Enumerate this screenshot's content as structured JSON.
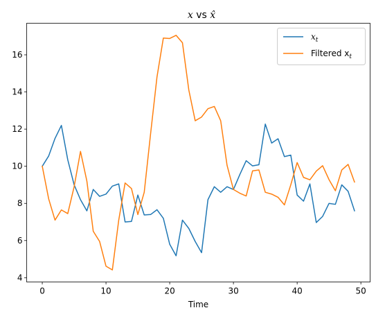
{
  "chart_data": {
    "type": "line",
    "title": "x vs x̂",
    "title_parts": {
      "a": "x",
      "vs": " vs ",
      "b": "x̂"
    },
    "xlabel": "Time",
    "ylabel": "",
    "xlim": [
      -2.45,
      51.45
    ],
    "ylim": [
      3.77,
      17.7
    ],
    "xticks": [
      0,
      10,
      20,
      30,
      40,
      50
    ],
    "yticks": [
      4,
      6,
      8,
      10,
      12,
      14,
      16
    ],
    "grid": false,
    "legend_position": "top-right",
    "series": [
      {
        "name": "x_t",
        "legend_label": {
          "main": "x",
          "sub": "t"
        },
        "color": "#1f77b4",
        "x": [
          0,
          1,
          2,
          3,
          4,
          5,
          6,
          7,
          8,
          9,
          10,
          11,
          12,
          13,
          14,
          15,
          16,
          17,
          18,
          19,
          20,
          21,
          22,
          23,
          24,
          25,
          26,
          27,
          28,
          29,
          30,
          31,
          32,
          33,
          34,
          35,
          36,
          37,
          38,
          39,
          40,
          41,
          42,
          43,
          44,
          45,
          46,
          47,
          48,
          49
        ],
        "values": [
          10.0,
          10.55,
          11.5,
          12.2,
          10.35,
          9.0,
          8.2,
          7.6,
          8.75,
          8.38,
          8.5,
          8.93,
          9.05,
          7.0,
          7.03,
          8.45,
          7.38,
          7.4,
          7.66,
          7.2,
          5.8,
          5.18,
          7.1,
          6.65,
          5.95,
          5.35,
          8.2,
          8.9,
          8.6,
          8.9,
          8.75,
          9.55,
          10.3,
          10.02,
          10.08,
          12.27,
          11.25,
          11.48,
          10.52,
          10.6,
          8.45,
          8.12,
          9.05,
          6.97,
          7.3,
          8.0,
          7.95,
          9.0,
          8.65,
          7.6
        ]
      },
      {
        "name": "Filtered x_t",
        "legend_label": {
          "main": "Filtered x",
          "sub": "t"
        },
        "color": "#ff7f0e",
        "x": [
          0,
          1,
          2,
          3,
          4,
          5,
          6,
          7,
          8,
          9,
          10,
          11,
          12,
          13,
          14,
          15,
          16,
          17,
          18,
          19,
          20,
          21,
          22,
          23,
          24,
          25,
          26,
          27,
          28,
          29,
          30,
          31,
          32,
          33,
          34,
          35,
          36,
          37,
          38,
          39,
          40,
          41,
          42,
          43,
          44,
          45,
          46,
          47,
          48,
          49
        ],
        "values": [
          10.0,
          8.25,
          7.1,
          7.65,
          7.45,
          8.9,
          10.8,
          9.2,
          6.5,
          5.95,
          4.62,
          4.42,
          7.1,
          9.1,
          8.8,
          7.4,
          8.6,
          11.75,
          14.8,
          16.9,
          16.88,
          17.05,
          16.65,
          14.1,
          12.45,
          12.65,
          13.1,
          13.22,
          12.45,
          10.05,
          8.75,
          8.55,
          8.4,
          9.75,
          9.8,
          8.6,
          8.5,
          8.33,
          7.92,
          9.0,
          10.2,
          9.4,
          9.27,
          9.74,
          10.03,
          9.28,
          8.68,
          9.8,
          10.1,
          9.15
        ]
      }
    ]
  }
}
